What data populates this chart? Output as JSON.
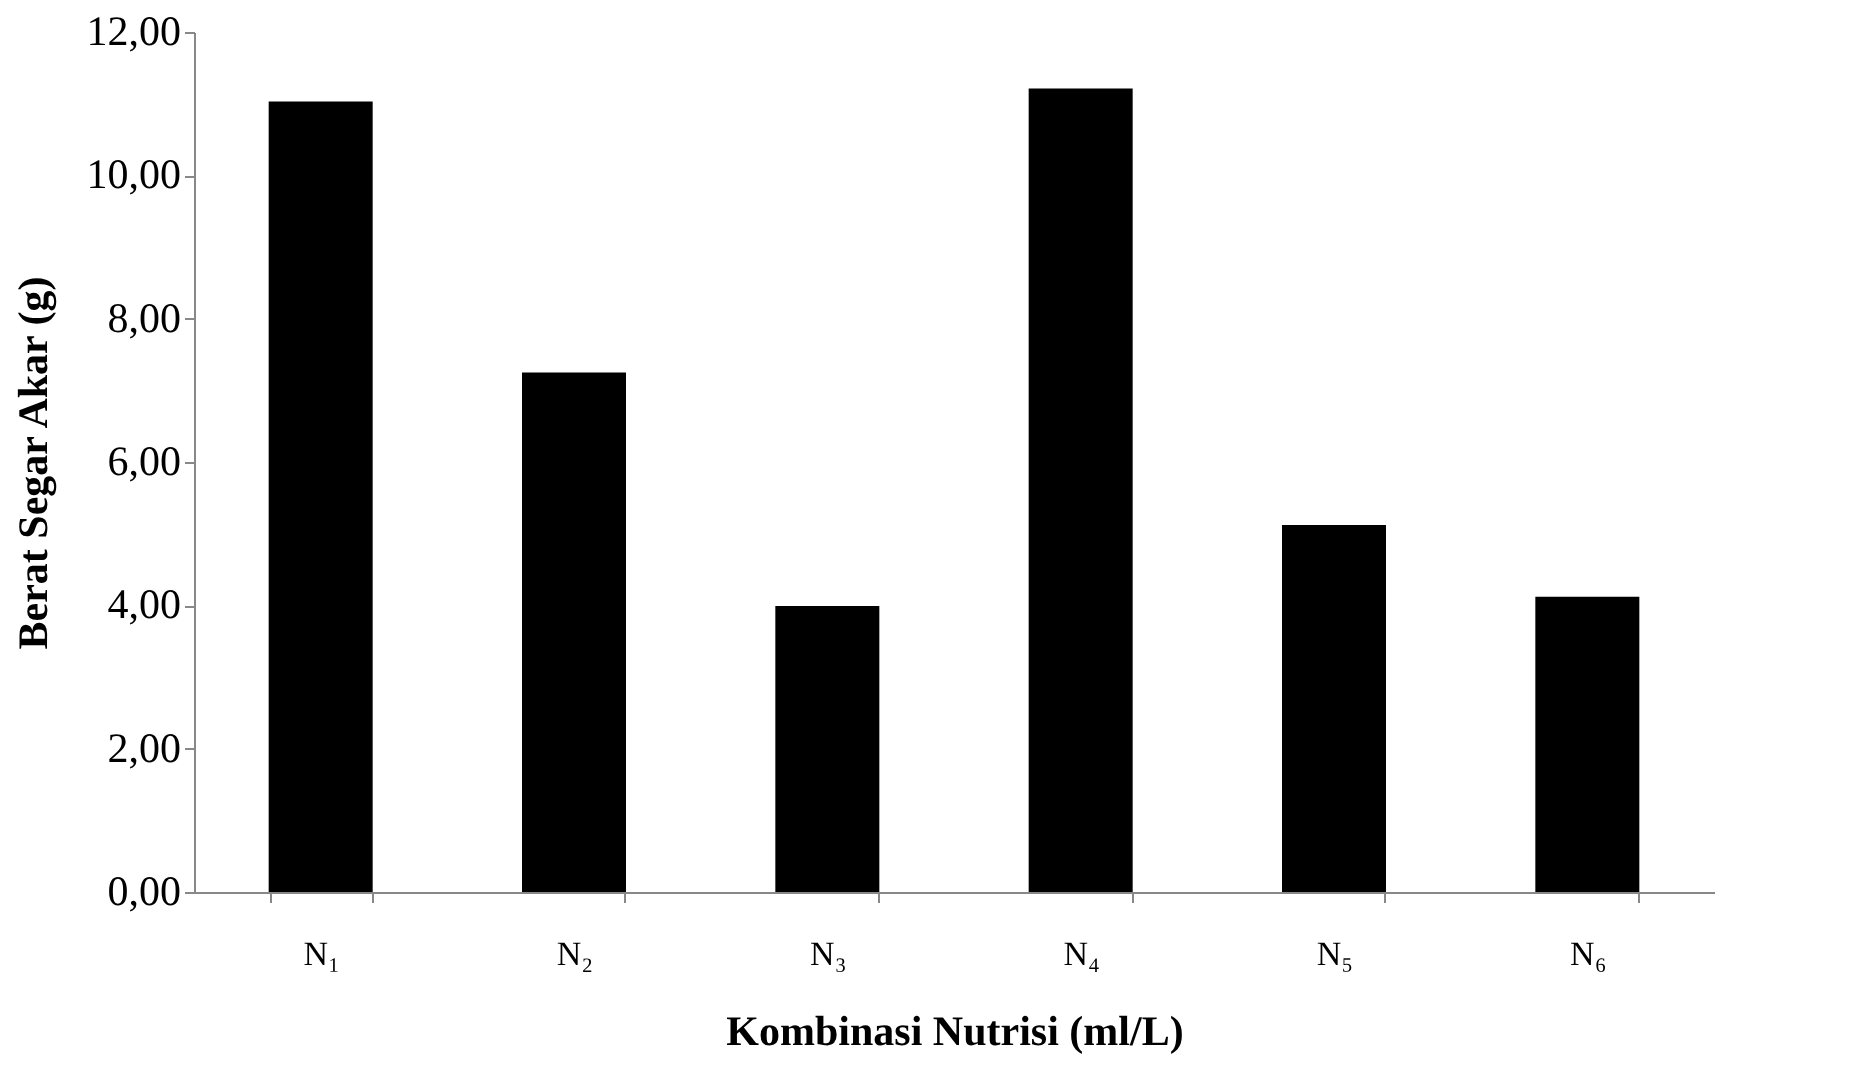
{
  "chart_data": {
    "type": "bar",
    "xlabel": "Kombinasi Nutrisi (ml/L)",
    "ylabel": "Berat Segar Akar (g)",
    "categories": [
      "N₁",
      "N₂",
      "N₃",
      "N₄",
      "N₅",
      "N₆"
    ],
    "values": [
      11.03,
      7.25,
      3.99,
      11.21,
      5.12,
      4.12
    ],
    "color": "#000000",
    "ylim": [
      0,
      12
    ],
    "yticks": [
      {
        "value": 0,
        "label": "0,00"
      },
      {
        "value": 2,
        "label": "2,00"
      },
      {
        "value": 4,
        "label": "4,00"
      },
      {
        "value": 6,
        "label": "6,00"
      },
      {
        "value": 8,
        "label": "8,00"
      },
      {
        "value": 10,
        "label": "10,00"
      },
      {
        "value": 12,
        "label": "12,00"
      }
    ],
    "grid": false
  }
}
